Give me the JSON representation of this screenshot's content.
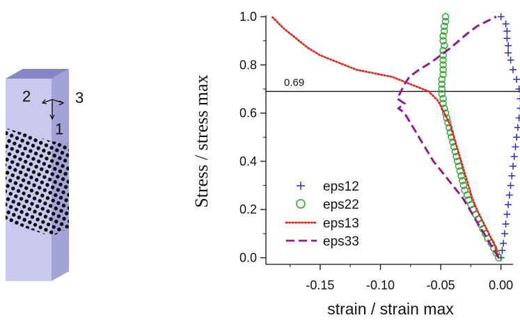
{
  "specimen": {
    "axis_labels": [
      "1",
      "2",
      "3"
    ],
    "colors": {
      "front": "#c9c9f0",
      "side": "#a3a3d8",
      "top": "#8686c4",
      "dots": "#000000"
    }
  },
  "chart_data": {
    "type": "line",
    "title": "",
    "xlabel": "strain / strain max",
    "ylabel": "Stress / stress max",
    "xlim": [
      -0.195,
      0.01
    ],
    "ylim": [
      -0.01,
      1.0
    ],
    "x_ticks": [
      -0.15,
      -0.1,
      -0.05,
      0.0
    ],
    "x_tick_labels": [
      "-0.15",
      "-0.10",
      "-0.05",
      "0.00"
    ],
    "y_ticks": [
      0.0,
      0.2,
      0.4,
      0.6,
      0.8,
      1.0
    ],
    "y_tick_labels": [
      "0.0",
      "0.2",
      "0.4",
      "0.6",
      "0.8",
      "1.0"
    ],
    "grid": false,
    "reference_line": {
      "y": 0.69,
      "label": "0.69"
    },
    "legend_position": "lower-left",
    "series": [
      {
        "name": "eps12",
        "marker": "plus",
        "line": "none",
        "color": "#2b2bd6",
        "points": [
          [
            0.0,
            0.0
          ],
          [
            0.001,
            0.03
          ],
          [
            0.002,
            0.06
          ],
          [
            0.003,
            0.1
          ],
          [
            0.004,
            0.14
          ],
          [
            0.005,
            0.18
          ],
          [
            0.006,
            0.22
          ],
          [
            0.007,
            0.26
          ],
          [
            0.008,
            0.3
          ],
          [
            0.009,
            0.34
          ],
          [
            0.01,
            0.38
          ],
          [
            0.011,
            0.42
          ],
          [
            0.012,
            0.46
          ],
          [
            0.013,
            0.5
          ],
          [
            0.014,
            0.54
          ],
          [
            0.015,
            0.58
          ],
          [
            0.016,
            0.62
          ],
          [
            0.016,
            0.66
          ],
          [
            0.015,
            0.7
          ],
          [
            0.013,
            0.74
          ],
          [
            0.01,
            0.78
          ],
          [
            0.008,
            0.82
          ],
          [
            0.006,
            0.85
          ],
          [
            0.006,
            0.88
          ],
          [
            0.005,
            0.91
          ],
          [
            0.005,
            0.94
          ],
          [
            0.004,
            0.97
          ],
          [
            0.0,
            1.0
          ]
        ]
      },
      {
        "name": "eps22",
        "marker": "circle",
        "line": "none",
        "color": "#2e9e2e",
        "points": [
          [
            -0.002,
            0.0
          ],
          [
            -0.004,
            0.02
          ],
          [
            -0.006,
            0.04
          ],
          [
            -0.008,
            0.06
          ],
          [
            -0.011,
            0.08
          ],
          [
            -0.013,
            0.1
          ],
          [
            -0.015,
            0.12
          ],
          [
            -0.017,
            0.14
          ],
          [
            -0.019,
            0.16
          ],
          [
            -0.021,
            0.18
          ],
          [
            -0.023,
            0.2
          ],
          [
            -0.025,
            0.22
          ],
          [
            -0.027,
            0.24
          ],
          [
            -0.028,
            0.26
          ],
          [
            -0.03,
            0.28
          ],
          [
            -0.031,
            0.3
          ],
          [
            -0.032,
            0.32
          ],
          [
            -0.033,
            0.34
          ],
          [
            -0.034,
            0.36
          ],
          [
            -0.035,
            0.38
          ],
          [
            -0.036,
            0.4
          ],
          [
            -0.037,
            0.42
          ],
          [
            -0.038,
            0.44
          ],
          [
            -0.039,
            0.46
          ],
          [
            -0.04,
            0.48
          ],
          [
            -0.041,
            0.5
          ],
          [
            -0.042,
            0.52
          ],
          [
            -0.043,
            0.54
          ],
          [
            -0.044,
            0.56
          ],
          [
            -0.045,
            0.58
          ],
          [
            -0.046,
            0.6
          ],
          [
            -0.047,
            0.62
          ],
          [
            -0.048,
            0.64
          ],
          [
            -0.048,
            0.66
          ],
          [
            -0.049,
            0.68
          ],
          [
            -0.049,
            0.7
          ],
          [
            -0.049,
            0.72
          ],
          [
            -0.049,
            0.74
          ],
          [
            -0.048,
            0.76
          ],
          [
            -0.048,
            0.78
          ],
          [
            -0.048,
            0.8
          ],
          [
            -0.048,
            0.82
          ],
          [
            -0.048,
            0.84
          ],
          [
            -0.048,
            0.86
          ],
          [
            -0.047,
            0.88
          ],
          [
            -0.048,
            0.9
          ],
          [
            -0.048,
            0.92
          ],
          [
            -0.047,
            0.94
          ],
          [
            -0.047,
            0.96
          ],
          [
            -0.046,
            0.98
          ],
          [
            -0.046,
            1.0
          ]
        ]
      },
      {
        "name": "eps13",
        "marker": "none",
        "line": "dotted",
        "color": "#e0251b",
        "points": [
          [
            -0.002,
            0.0
          ],
          [
            -0.005,
            0.05
          ],
          [
            -0.01,
            0.1
          ],
          [
            -0.015,
            0.15
          ],
          [
            -0.02,
            0.2
          ],
          [
            -0.024,
            0.25
          ],
          [
            -0.027,
            0.3
          ],
          [
            -0.03,
            0.35
          ],
          [
            -0.033,
            0.4
          ],
          [
            -0.036,
            0.45
          ],
          [
            -0.039,
            0.5
          ],
          [
            -0.042,
            0.55
          ],
          [
            -0.047,
            0.6
          ],
          [
            -0.052,
            0.65
          ],
          [
            -0.06,
            0.69
          ],
          [
            -0.07,
            0.71
          ],
          [
            -0.08,
            0.73
          ],
          [
            -0.09,
            0.75
          ],
          [
            -0.1,
            0.76
          ],
          [
            -0.11,
            0.77
          ],
          [
            -0.12,
            0.78
          ],
          [
            -0.13,
            0.8
          ],
          [
            -0.14,
            0.82
          ],
          [
            -0.15,
            0.84
          ],
          [
            -0.16,
            0.87
          ],
          [
            -0.17,
            0.91
          ],
          [
            -0.18,
            0.95
          ],
          [
            -0.19,
            1.0
          ]
        ]
      },
      {
        "name": "eps33",
        "marker": "none",
        "line": "dashed",
        "color": "#8e1a8e",
        "points": [
          [
            -0.002,
            0.0
          ],
          [
            -0.008,
            0.05
          ],
          [
            -0.014,
            0.1
          ],
          [
            -0.02,
            0.15
          ],
          [
            -0.026,
            0.2
          ],
          [
            -0.032,
            0.25
          ],
          [
            -0.04,
            0.3
          ],
          [
            -0.048,
            0.35
          ],
          [
            -0.056,
            0.4
          ],
          [
            -0.062,
            0.45
          ],
          [
            -0.068,
            0.5
          ],
          [
            -0.074,
            0.55
          ],
          [
            -0.08,
            0.6
          ],
          [
            -0.085,
            0.62
          ],
          [
            -0.08,
            0.64
          ],
          [
            -0.086,
            0.66
          ],
          [
            -0.083,
            0.69
          ],
          [
            -0.08,
            0.72
          ],
          [
            -0.076,
            0.75
          ],
          [
            -0.068,
            0.78
          ],
          [
            -0.058,
            0.81
          ],
          [
            -0.05,
            0.84
          ],
          [
            -0.042,
            0.87
          ],
          [
            -0.035,
            0.9
          ],
          [
            -0.028,
            0.93
          ],
          [
            -0.02,
            0.96
          ],
          [
            -0.012,
            0.98
          ],
          [
            -0.004,
            1.0
          ]
        ]
      }
    ]
  }
}
